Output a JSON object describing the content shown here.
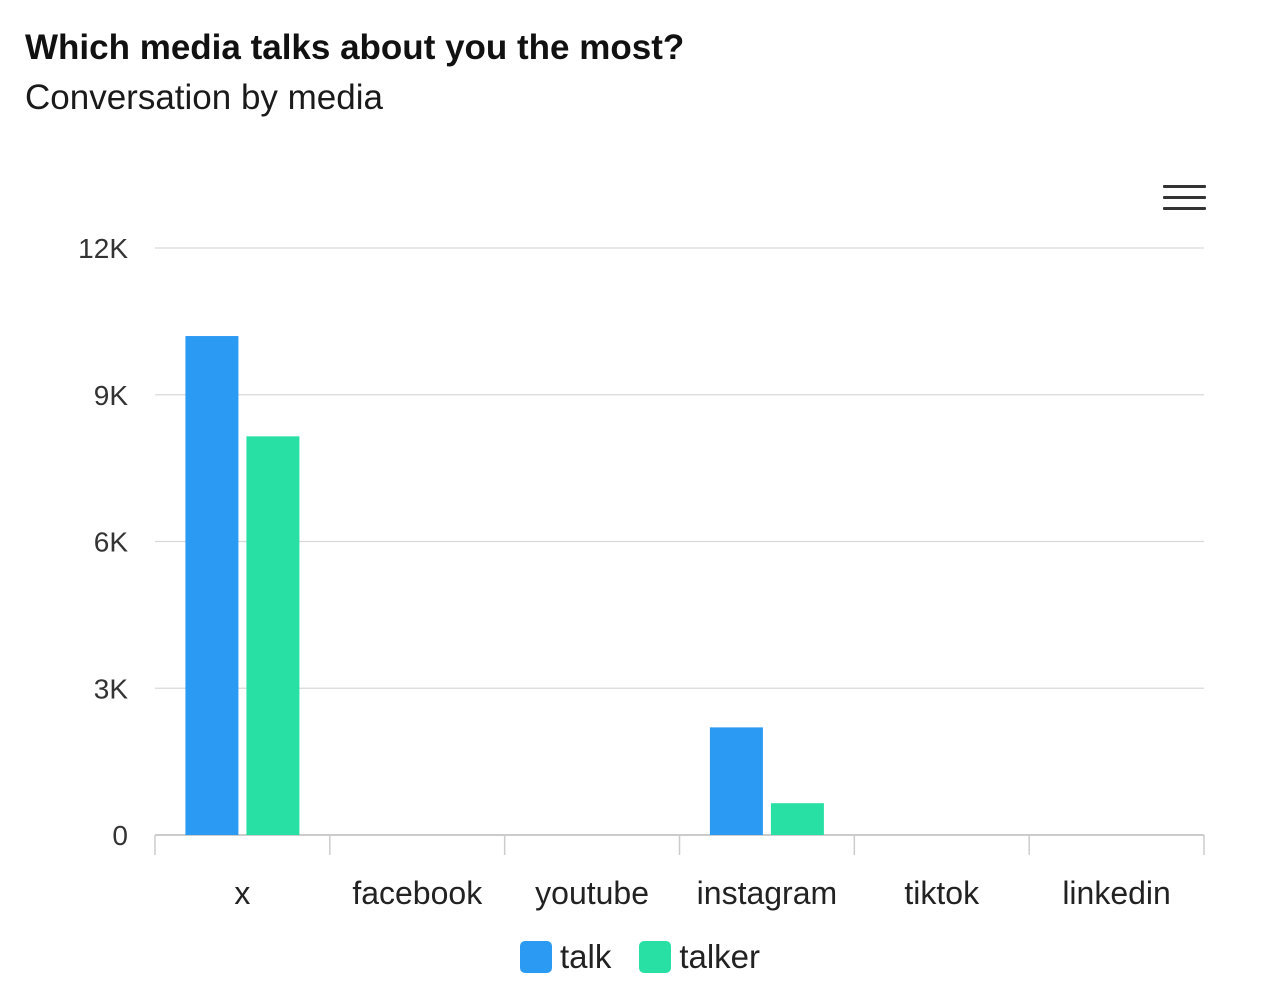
{
  "header": {
    "title": "Which media talks about you the most?",
    "subtitle": "Conversation by media"
  },
  "menu": {
    "icon": "hamburger-menu-icon"
  },
  "chart_data": {
    "type": "bar",
    "title": "Which media talks about you the most?",
    "subtitle": "Conversation by media",
    "categories": [
      "x",
      "facebook",
      "youtube",
      "instagram",
      "tiktok",
      "linkedin"
    ],
    "series": [
      {
        "name": "talk",
        "color": "#2b9af3",
        "values": [
          10200,
          0,
          0,
          2200,
          0,
          0
        ]
      },
      {
        "name": "talker",
        "color": "#28e0a4",
        "values": [
          8150,
          0,
          0,
          650,
          0,
          0
        ]
      }
    ],
    "ylim": [
      0,
      12000
    ],
    "yticks": [
      0,
      3000,
      6000,
      9000,
      12000
    ],
    "ytick_labels": [
      "0",
      "3K",
      "6K",
      "9K",
      "12K"
    ],
    "xlabel": "",
    "ylabel": "",
    "grid": true,
    "legend": "bottom-center"
  }
}
